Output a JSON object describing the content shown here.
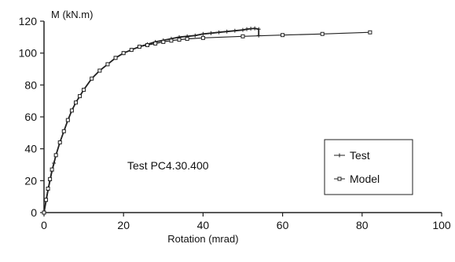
{
  "chart_data": {
    "type": "line",
    "ylabel": "M (kN.m)",
    "xlabel": "Rotation (mrad)",
    "annotation": "Test PC4.30.400",
    "xlim": [
      0,
      100
    ],
    "ylim": [
      0,
      120
    ],
    "xticks": [
      0,
      20,
      40,
      60,
      80,
      100
    ],
    "yticks": [
      0,
      20,
      40,
      60,
      80,
      100,
      120
    ],
    "grid": false,
    "legend_position": "center-right",
    "series": [
      {
        "name": "Test",
        "marker": "plus",
        "color": "#222222",
        "x": [
          0,
          0.5,
          1,
          1.5,
          2,
          2.5,
          3,
          4,
          5,
          6,
          7,
          8,
          9,
          10,
          12,
          14,
          16,
          18,
          20,
          22,
          24,
          26,
          28,
          30,
          32,
          34,
          36,
          38,
          40,
          42,
          44,
          46,
          48,
          50,
          51,
          52,
          53,
          54,
          54
        ],
        "y": [
          0,
          7,
          14,
          20,
          26,
          31,
          36,
          44,
          51,
          58,
          64,
          69,
          73,
          77,
          84,
          89,
          93,
          97,
          100,
          102,
          104,
          105.5,
          107,
          108,
          109,
          110,
          110.5,
          111,
          112,
          112.5,
          113,
          113.5,
          114,
          114.5,
          115,
          115.3,
          115.5,
          115,
          111
        ]
      },
      {
        "name": "Model",
        "marker": "square",
        "color": "#222222",
        "x": [
          0,
          0.5,
          1,
          1.5,
          2,
          3,
          4,
          5,
          6,
          7,
          8,
          9,
          10,
          12,
          14,
          16,
          18,
          20,
          22,
          24,
          26,
          28,
          30,
          32,
          34,
          36,
          40,
          50,
          60,
          70,
          82
        ],
        "y": [
          0,
          8,
          15,
          21,
          27,
          36,
          44,
          51,
          58,
          64,
          69,
          73,
          77,
          84,
          89,
          93,
          97,
          100,
          102,
          104,
          105,
          106,
          107,
          107.8,
          108.4,
          108.9,
          109.5,
          110.5,
          111.3,
          112,
          113
        ]
      }
    ]
  }
}
